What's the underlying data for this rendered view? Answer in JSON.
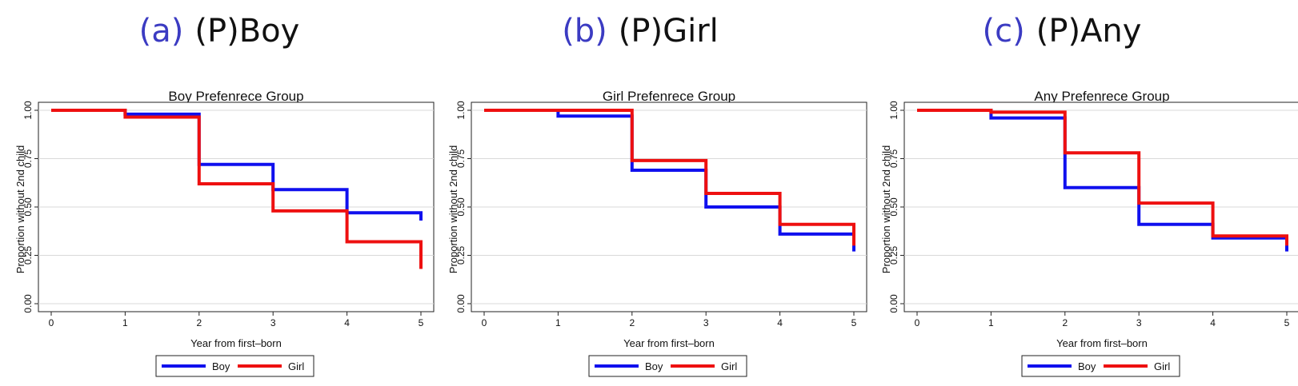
{
  "colors": {
    "boy": "#1010ee",
    "girl": "#ee1010",
    "caption_label": "#3b3bc2",
    "grid": "#d9d9d9"
  },
  "chart_data": [
    {
      "type": "line",
      "caption_label": "(a)",
      "caption_text": "(P)Boy",
      "title": "Boy Prefenrece Group",
      "xlabel": "Year from first–born",
      "ylabel": "Proportion without 2nd child",
      "xlim": [
        0,
        5
      ],
      "ylim": [
        0,
        1
      ],
      "x_ticks": [
        "0",
        "1",
        "2",
        "3",
        "4",
        "5"
      ],
      "y_ticks": [
        "0.00",
        "0.25",
        "0.50",
        "0.75",
        "1.00"
      ],
      "grid": true,
      "legend_position": "bottom",
      "series": [
        {
          "name": "Boy",
          "color": "#1010ee",
          "x": [
            0,
            1,
            2,
            3,
            4,
            5,
            5
          ],
          "y": [
            1.0,
            0.98,
            0.72,
            0.59,
            0.47,
            0.47,
            0.43
          ]
        },
        {
          "name": "Girl",
          "color": "#ee1010",
          "x": [
            0,
            1,
            2,
            3,
            4,
            5,
            5
          ],
          "y": [
            1.0,
            0.965,
            0.62,
            0.48,
            0.32,
            0.32,
            0.18
          ]
        }
      ]
    },
    {
      "type": "line",
      "caption_label": "(b)",
      "caption_text": "(P)Girl",
      "title": "Girl Prefenrece Group",
      "xlabel": "Year from first–born",
      "ylabel": "Proportion without 2nd child",
      "xlim": [
        0,
        5
      ],
      "ylim": [
        0,
        1
      ],
      "x_ticks": [
        "0",
        "1",
        "2",
        "3",
        "4",
        "5"
      ],
      "y_ticks": [
        "0.00",
        "0.25",
        "0.50",
        "0.75",
        "1.00"
      ],
      "grid": true,
      "legend_position": "bottom",
      "series": [
        {
          "name": "Boy",
          "color": "#1010ee",
          "x": [
            0,
            1,
            2,
            3,
            4,
            5,
            5
          ],
          "y": [
            1.0,
            0.97,
            0.69,
            0.5,
            0.36,
            0.36,
            0.27
          ]
        },
        {
          "name": "Girl",
          "color": "#ee1010",
          "x": [
            0,
            1,
            2,
            3,
            4,
            5,
            5
          ],
          "y": [
            1.0,
            1.0,
            0.74,
            0.57,
            0.41,
            0.41,
            0.3
          ]
        }
      ]
    },
    {
      "type": "line",
      "caption_label": "(c)",
      "caption_text": "(P)Any",
      "title": "Any Prefenrece Group",
      "xlabel": "Year from first–born",
      "ylabel": "Proportion without 2nd child",
      "xlim": [
        0,
        5
      ],
      "ylim": [
        0,
        1
      ],
      "x_ticks": [
        "0",
        "1",
        "2",
        "3",
        "4",
        "5"
      ],
      "y_ticks": [
        "0.00",
        "0.25",
        "0.50",
        "0.75",
        "1.00"
      ],
      "grid": true,
      "legend_position": "bottom",
      "series": [
        {
          "name": "Boy",
          "color": "#1010ee",
          "x": [
            0,
            1,
            2,
            3,
            4,
            5,
            5
          ],
          "y": [
            1.0,
            0.96,
            0.6,
            0.41,
            0.34,
            0.34,
            0.27
          ]
        },
        {
          "name": "Girl",
          "color": "#ee1010",
          "x": [
            0,
            1,
            2,
            3,
            4,
            5,
            5
          ],
          "y": [
            1.0,
            0.99,
            0.78,
            0.52,
            0.35,
            0.35,
            0.3
          ]
        }
      ]
    }
  ]
}
